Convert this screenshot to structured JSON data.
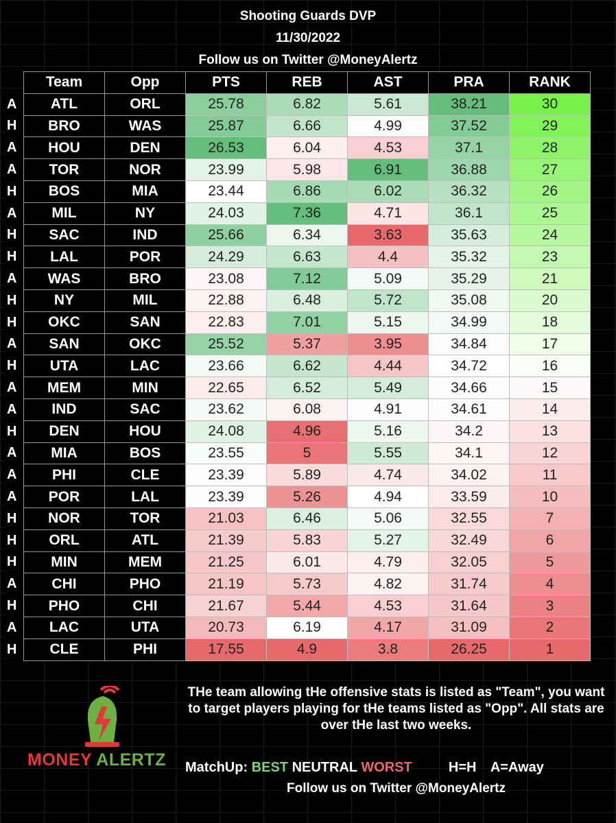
{
  "header": {
    "title": "Shooting Guards DVP",
    "date": "11/30/2022",
    "follow": "Follow us on Twitter @MoneyAlertz"
  },
  "table": {
    "columns": [
      "Team",
      "Opp",
      "PTS",
      "REB",
      "AST",
      "PRA",
      "RANK"
    ],
    "rows": [
      {
        "ha": "A",
        "team": "ATL",
        "opp": "ORL",
        "pts": "25.78",
        "reb": "6.82",
        "ast": "5.61",
        "pra": "38.21",
        "rank": "30"
      },
      {
        "ha": "H",
        "team": "BRO",
        "opp": "WAS",
        "pts": "25.87",
        "reb": "6.66",
        "ast": "4.99",
        "pra": "37.52",
        "rank": "29"
      },
      {
        "ha": "A",
        "team": "HOU",
        "opp": "DEN",
        "pts": "26.53",
        "reb": "6.04",
        "ast": "4.53",
        "pra": "37.1",
        "rank": "28"
      },
      {
        "ha": "A",
        "team": "TOR",
        "opp": "NOR",
        "pts": "23.99",
        "reb": "5.98",
        "ast": "6.91",
        "pra": "36.88",
        "rank": "27"
      },
      {
        "ha": "H",
        "team": "BOS",
        "opp": "MIA",
        "pts": "23.44",
        "reb": "6.86",
        "ast": "6.02",
        "pra": "36.32",
        "rank": "26"
      },
      {
        "ha": "A",
        "team": "MIL",
        "opp": "NY",
        "pts": "24.03",
        "reb": "7.36",
        "ast": "4.71",
        "pra": "36.1",
        "rank": "25"
      },
      {
        "ha": "H",
        "team": "SAC",
        "opp": "IND",
        "pts": "25.66",
        "reb": "6.34",
        "ast": "3.63",
        "pra": "35.63",
        "rank": "24"
      },
      {
        "ha": "H",
        "team": "LAL",
        "opp": "POR",
        "pts": "24.29",
        "reb": "6.63",
        "ast": "4.4",
        "pra": "35.32",
        "rank": "23"
      },
      {
        "ha": "A",
        "team": "WAS",
        "opp": "BRO",
        "pts": "23.08",
        "reb": "7.12",
        "ast": "5.09",
        "pra": "35.29",
        "rank": "21"
      },
      {
        "ha": "H",
        "team": "NY",
        "opp": "MIL",
        "pts": "22.88",
        "reb": "6.48",
        "ast": "5.72",
        "pra": "35.08",
        "rank": "20"
      },
      {
        "ha": "H",
        "team": "OKC",
        "opp": "SAN",
        "pts": "22.83",
        "reb": "7.01",
        "ast": "5.15",
        "pra": "34.99",
        "rank": "18"
      },
      {
        "ha": "A",
        "team": "SAN",
        "opp": "OKC",
        "pts": "25.52",
        "reb": "5.37",
        "ast": "3.95",
        "pra": "34.84",
        "rank": "17"
      },
      {
        "ha": "H",
        "team": "UTA",
        "opp": "LAC",
        "pts": "23.66",
        "reb": "6.62",
        "ast": "4.44",
        "pra": "34.72",
        "rank": "16"
      },
      {
        "ha": "A",
        "team": "MEM",
        "opp": "MIN",
        "pts": "22.65",
        "reb": "6.52",
        "ast": "5.49",
        "pra": "34.66",
        "rank": "15"
      },
      {
        "ha": "A",
        "team": "IND",
        "opp": "SAC",
        "pts": "23.62",
        "reb": "6.08",
        "ast": "4.91",
        "pra": "34.61",
        "rank": "14"
      },
      {
        "ha": "H",
        "team": "DEN",
        "opp": "HOU",
        "pts": "24.08",
        "reb": "4.96",
        "ast": "5.16",
        "pra": "34.2",
        "rank": "13"
      },
      {
        "ha": "A",
        "team": "MIA",
        "opp": "BOS",
        "pts": "23.55",
        "reb": "5",
        "ast": "5.55",
        "pra": "34.1",
        "rank": "12"
      },
      {
        "ha": "A",
        "team": "PHI",
        "opp": "CLE",
        "pts": "23.39",
        "reb": "5.89",
        "ast": "4.74",
        "pra": "34.02",
        "rank": "11"
      },
      {
        "ha": "A",
        "team": "POR",
        "opp": "LAL",
        "pts": "23.39",
        "reb": "5.26",
        "ast": "4.94",
        "pra": "33.59",
        "rank": "10"
      },
      {
        "ha": "H",
        "team": "NOR",
        "opp": "TOR",
        "pts": "21.03",
        "reb": "6.46",
        "ast": "5.06",
        "pra": "32.55",
        "rank": "7"
      },
      {
        "ha": "H",
        "team": "ORL",
        "opp": "ATL",
        "pts": "21.39",
        "reb": "5.83",
        "ast": "5.27",
        "pra": "32.49",
        "rank": "6"
      },
      {
        "ha": "H",
        "team": "MIN",
        "opp": "MEM",
        "pts": "21.25",
        "reb": "6.01",
        "ast": "4.79",
        "pra": "32.05",
        "rank": "5"
      },
      {
        "ha": "A",
        "team": "CHI",
        "opp": "PHO",
        "pts": "21.19",
        "reb": "5.73",
        "ast": "4.82",
        "pra": "31.74",
        "rank": "4"
      },
      {
        "ha": "H",
        "team": "PHO",
        "opp": "CHI",
        "pts": "21.67",
        "reb": "5.44",
        "ast": "4.53",
        "pra": "31.64",
        "rank": "3"
      },
      {
        "ha": "A",
        "team": "LAC",
        "opp": "UTA",
        "pts": "20.73",
        "reb": "6.19",
        "ast": "4.17",
        "pra": "31.09",
        "rank": "2"
      },
      {
        "ha": "H",
        "team": "CLE",
        "opp": "PHI",
        "pts": "17.55",
        "reb": "4.9",
        "ast": "3.8",
        "pra": "26.25",
        "rank": "1"
      }
    ]
  },
  "footer": {
    "note": "THe team allowing tHe offensive stats is listed as \"Team\", you want to target players playing for tHe teams listed as \"Opp\". All stats are over tHe last two weeks.",
    "legend_prefix": "MatchUp:",
    "legend_best": "BEST",
    "legend_neutral": "NEUTRAL",
    "legend_worst": "WORST",
    "legend_home": "H=H",
    "legend_away": "A=Away",
    "follow": "Follow us on Twitter @MoneyAlertz"
  },
  "logo": {
    "word1": "MONEY",
    "word2": "ALERTZ",
    "icon": "bell-with-lightning-icon"
  },
  "colors": {
    "best": "#63be7b",
    "neutral": "#ffffff",
    "worst": "#e8696b",
    "rank_best": "#77f24b",
    "logo_red": "#e0393a",
    "logo_green": "#6fb043"
  }
}
